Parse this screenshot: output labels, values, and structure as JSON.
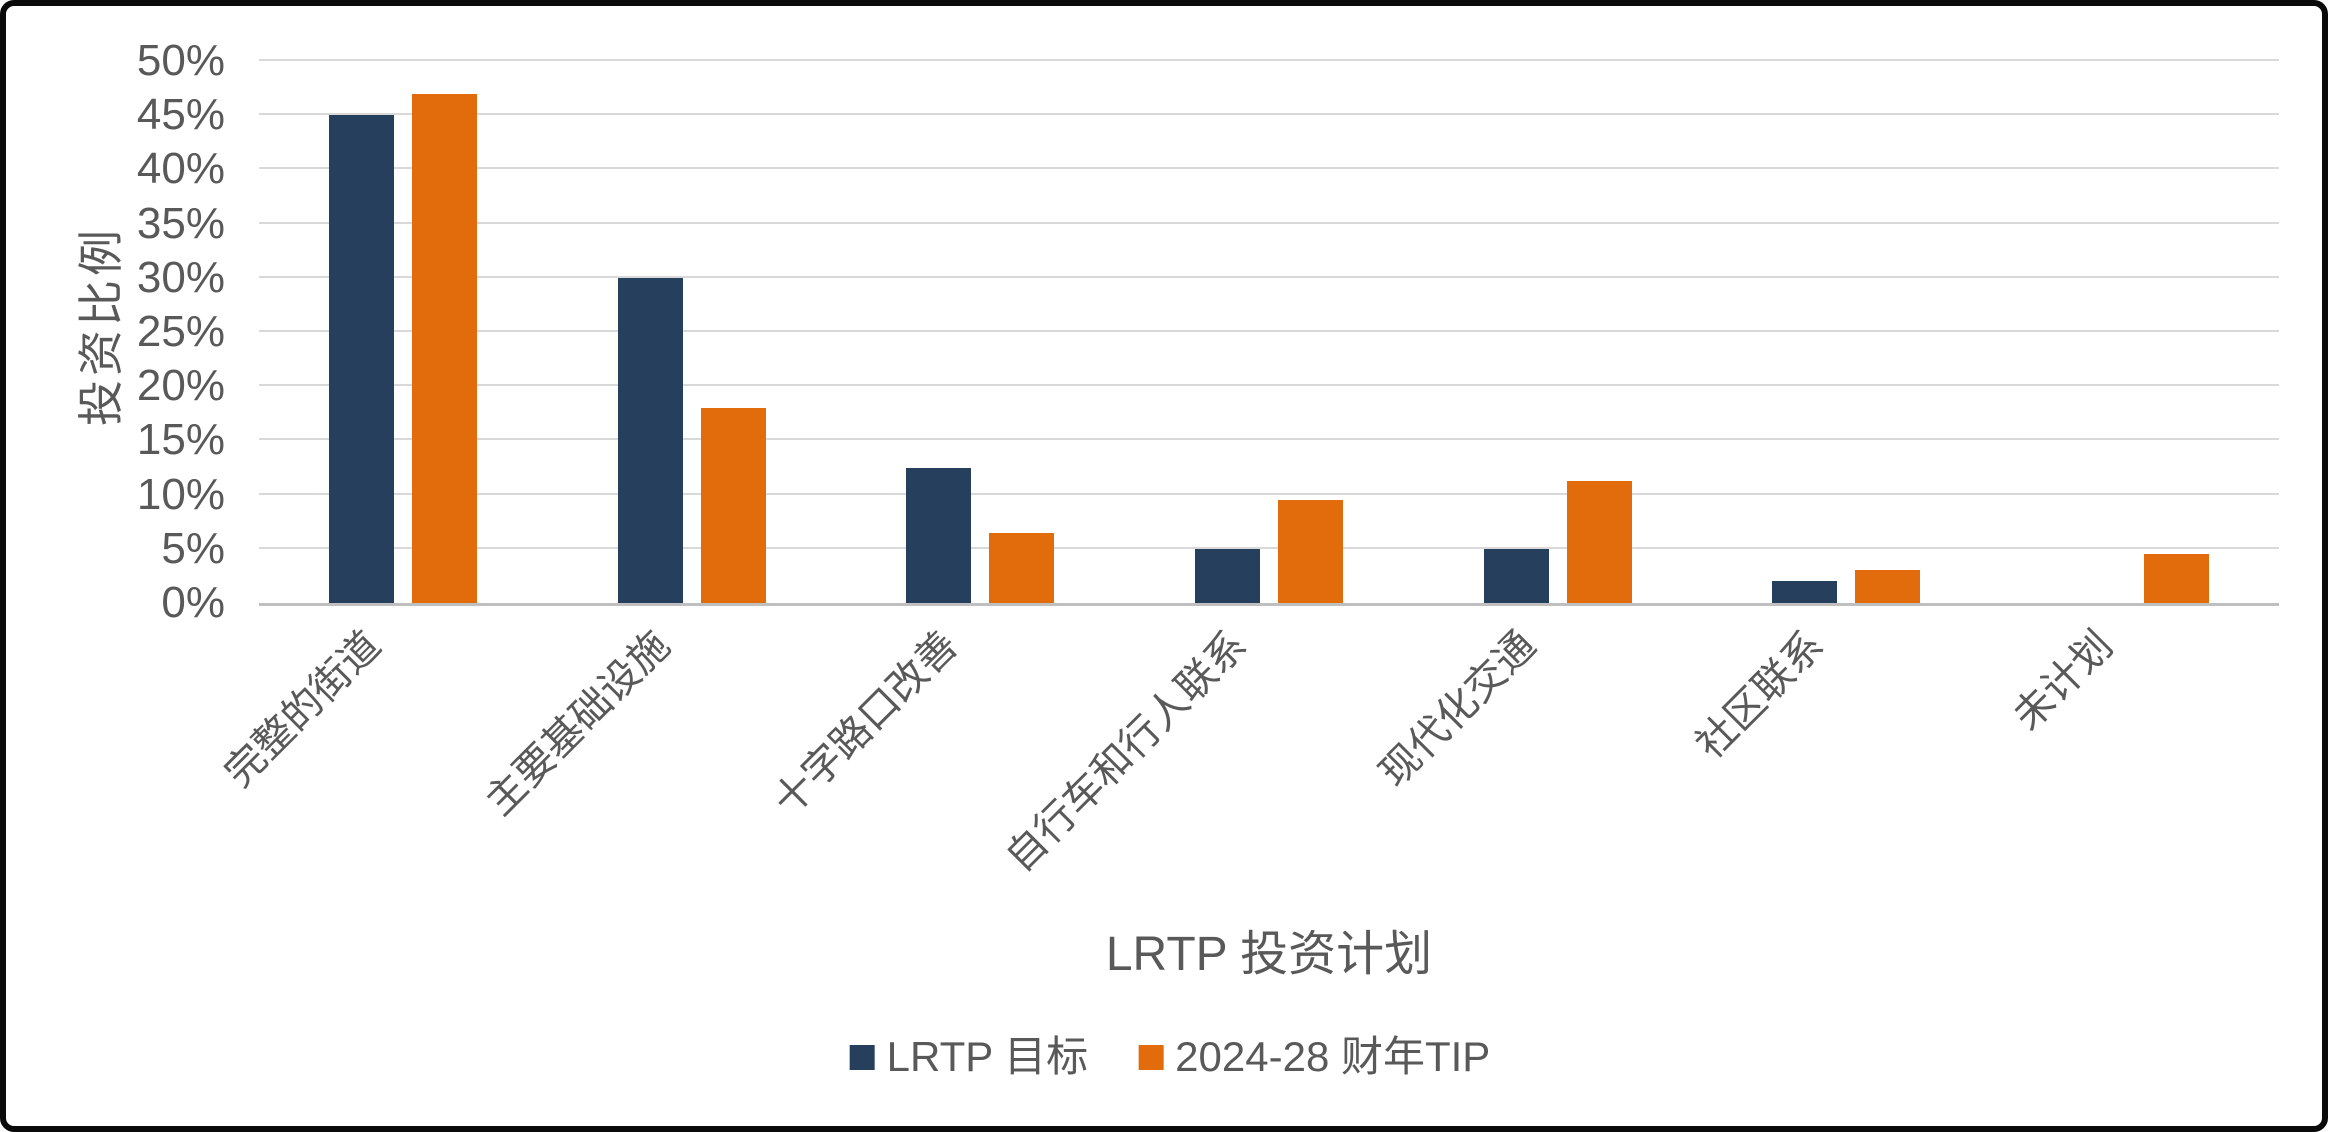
{
  "chart_data": {
    "type": "bar",
    "title": "",
    "categories": [
      "完整的街道",
      "主要基础设施",
      "十字路口改善",
      "自行车和行人联系",
      "现代化交通",
      "社区联系",
      "未计划"
    ],
    "series": [
      {
        "name": "LRTP 目标",
        "color": "#263F5D",
        "values": [
          45,
          30,
          12.5,
          5,
          5,
          2,
          0
        ]
      },
      {
        "name": "2024-28 财年TIP",
        "color": "#E26C0C",
        "values": [
          47,
          18,
          6.5,
          9.5,
          11.3,
          3,
          4.5
        ]
      }
    ],
    "xlabel": "LRTP 投资计划",
    "ylabel": "投资比例",
    "ylim": [
      0,
      50
    ],
    "ytick_step": 5,
    "yticks": [
      "0%",
      "5%",
      "10%",
      "15%",
      "20%",
      "25%",
      "30%",
      "35%",
      "40%",
      "45%",
      "50%"
    ],
    "grid": true,
    "legend_position": "bottom-center"
  },
  "colors": {
    "text": "#595959",
    "gridline": "#d9d9d9",
    "axis_line": "#bfbfbf",
    "series1": "#263F5D",
    "series2": "#E26C0C",
    "background": "#ffffff",
    "border": "#0a0a0a"
  }
}
